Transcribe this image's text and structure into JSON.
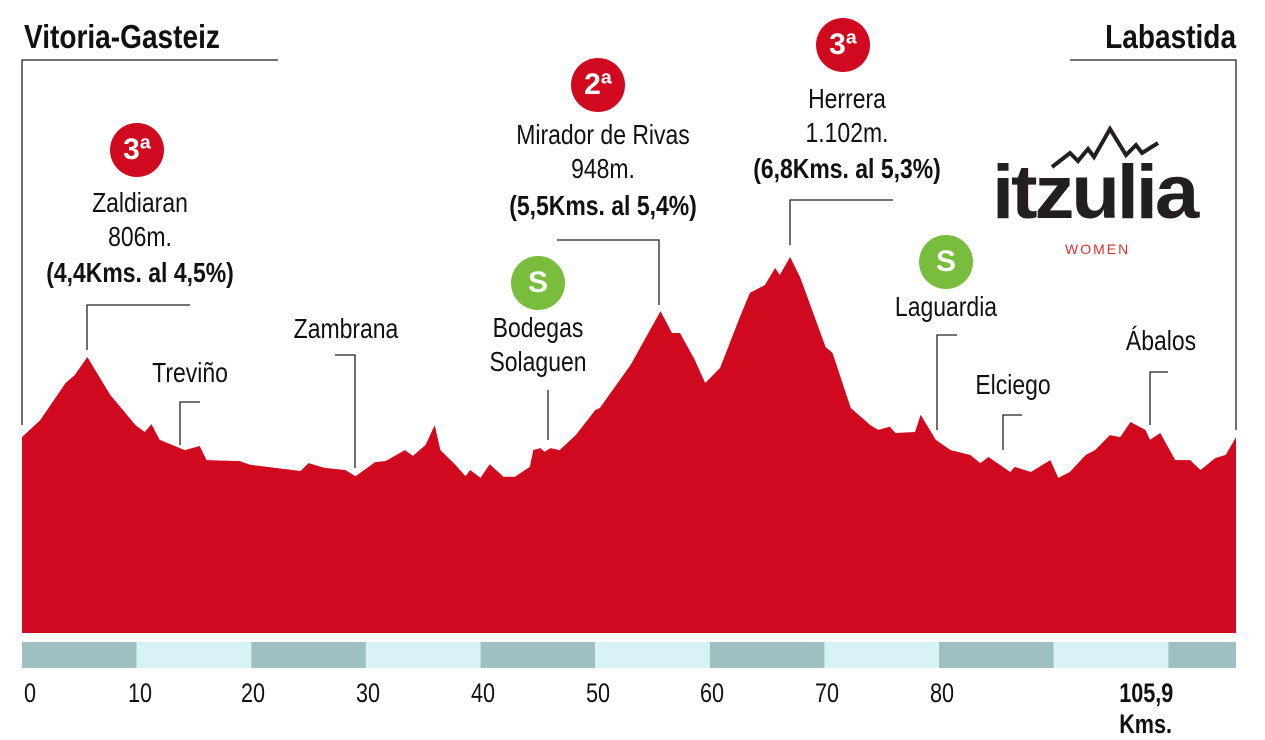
{
  "chart_data": {
    "type": "area",
    "title_start": "Vitoria-Gasteiz",
    "title_end": "Labastida",
    "xlabel": "Kms.",
    "xlim": [
      0,
      105.9
    ],
    "x_ticks": [
      "0",
      "10",
      "20",
      "30",
      "40",
      "50",
      "60",
      "70",
      "80"
    ],
    "x_end_label": "105,9 Kms.",
    "profile": [
      [
        0.0,
        572
      ],
      [
        1.6,
        622
      ],
      [
        3.8,
        730
      ],
      [
        4.6,
        753
      ],
      [
        5.7,
        806
      ],
      [
        7.7,
        695
      ],
      [
        9.9,
        607
      ],
      [
        10.7,
        587
      ],
      [
        11.3,
        610
      ],
      [
        12.0,
        564
      ],
      [
        14.2,
        534
      ],
      [
        15.5,
        546
      ],
      [
        16.1,
        505
      ],
      [
        19.0,
        502
      ],
      [
        19.9,
        491
      ],
      [
        24.3,
        473
      ],
      [
        25.0,
        496
      ],
      [
        26.4,
        482
      ],
      [
        28.2,
        476
      ],
      [
        29.1,
        458
      ],
      [
        30.8,
        499
      ],
      [
        31.7,
        502
      ],
      [
        33.4,
        534
      ],
      [
        34.1,
        517
      ],
      [
        35.2,
        549
      ],
      [
        36.0,
        607
      ],
      [
        36.5,
        534
      ],
      [
        37.8,
        491
      ],
      [
        38.7,
        458
      ],
      [
        39.1,
        476
      ],
      [
        40.0,
        453
      ],
      [
        40.8,
        493
      ],
      [
        42.0,
        456
      ],
      [
        43.0,
        456
      ],
      [
        44.3,
        485
      ],
      [
        44.6,
        534
      ],
      [
        45.2,
        540
      ],
      [
        45.6,
        529
      ],
      [
        46.1,
        540
      ],
      [
        46.9,
        534
      ],
      [
        48.3,
        578
      ],
      [
        50.0,
        651
      ],
      [
        50.4,
        657
      ],
      [
        53.1,
        783
      ],
      [
        55.7,
        940
      ],
      [
        56.7,
        876
      ],
      [
        57.4,
        876
      ],
      [
        58.7,
        797
      ],
      [
        59.6,
        730
      ],
      [
        60.9,
        774
      ],
      [
        62.7,
        929
      ],
      [
        63.5,
        993
      ],
      [
        64.8,
        1016
      ],
      [
        65.7,
        1066
      ],
      [
        66.1,
        1045
      ],
      [
        67.0,
        1098
      ],
      [
        67.9,
        1037
      ],
      [
        70.1,
        835
      ],
      [
        70.7,
        818
      ],
      [
        72.3,
        657
      ],
      [
        74.0,
        607
      ],
      [
        74.7,
        593
      ],
      [
        75.7,
        602
      ],
      [
        76.2,
        584
      ],
      [
        77.9,
        587
      ],
      [
        78.4,
        637
      ],
      [
        79.7,
        564
      ],
      [
        81.0,
        534
      ],
      [
        82.7,
        520
      ],
      [
        83.6,
        496
      ],
      [
        84.3,
        514
      ],
      [
        85.3,
        491
      ],
      [
        86.2,
        470
      ],
      [
        86.6,
        485
      ],
      [
        88.0,
        470
      ],
      [
        89.7,
        505
      ],
      [
        90.4,
        453
      ],
      [
        91.4,
        470
      ],
      [
        92.8,
        520
      ],
      [
        93.6,
        534
      ],
      [
        94.9,
        578
      ],
      [
        95.8,
        572
      ],
      [
        96.7,
        616
      ],
      [
        98.0,
        593
      ],
      [
        98.4,
        564
      ],
      [
        99.3,
        584
      ],
      [
        100.6,
        505
      ],
      [
        101.9,
        505
      ],
      [
        102.8,
        476
      ],
      [
        104.1,
        511
      ],
      [
        105.0,
        520
      ],
      [
        105.9,
        572
      ]
    ],
    "climbs": [
      {
        "category": "3ª",
        "name": "Zaldiaran",
        "altitude": "806m.",
        "detail": "(4,4Kms. al 4,5%)"
      },
      {
        "category": "2ª",
        "name": "Mirador de Rivas",
        "altitude": "948m.",
        "detail": "(5,5Kms. al 5,4%)"
      },
      {
        "category": "3ª",
        "name": "Herrera",
        "altitude": "1.102m.",
        "detail": "(6,8Kms. al 5,3%)"
      }
    ],
    "sprints": [
      {
        "badge": "S",
        "name_line1": "Bodegas",
        "name_line2": "Solaguen"
      },
      {
        "badge": "S",
        "name_line1": "Laguardia"
      }
    ],
    "towns": [
      "Treviño",
      "Zambrana",
      "Elciego",
      "Ábalos"
    ]
  },
  "colors": {
    "profile": "#d0091f",
    "climb_badge": "#d0091f",
    "sprint_badge": "#78be3c",
    "band_dark": "#9fc0c3",
    "band_light": "#d8f3f5"
  },
  "logo": {
    "word": "itzulia",
    "sub": "WOMEN"
  }
}
